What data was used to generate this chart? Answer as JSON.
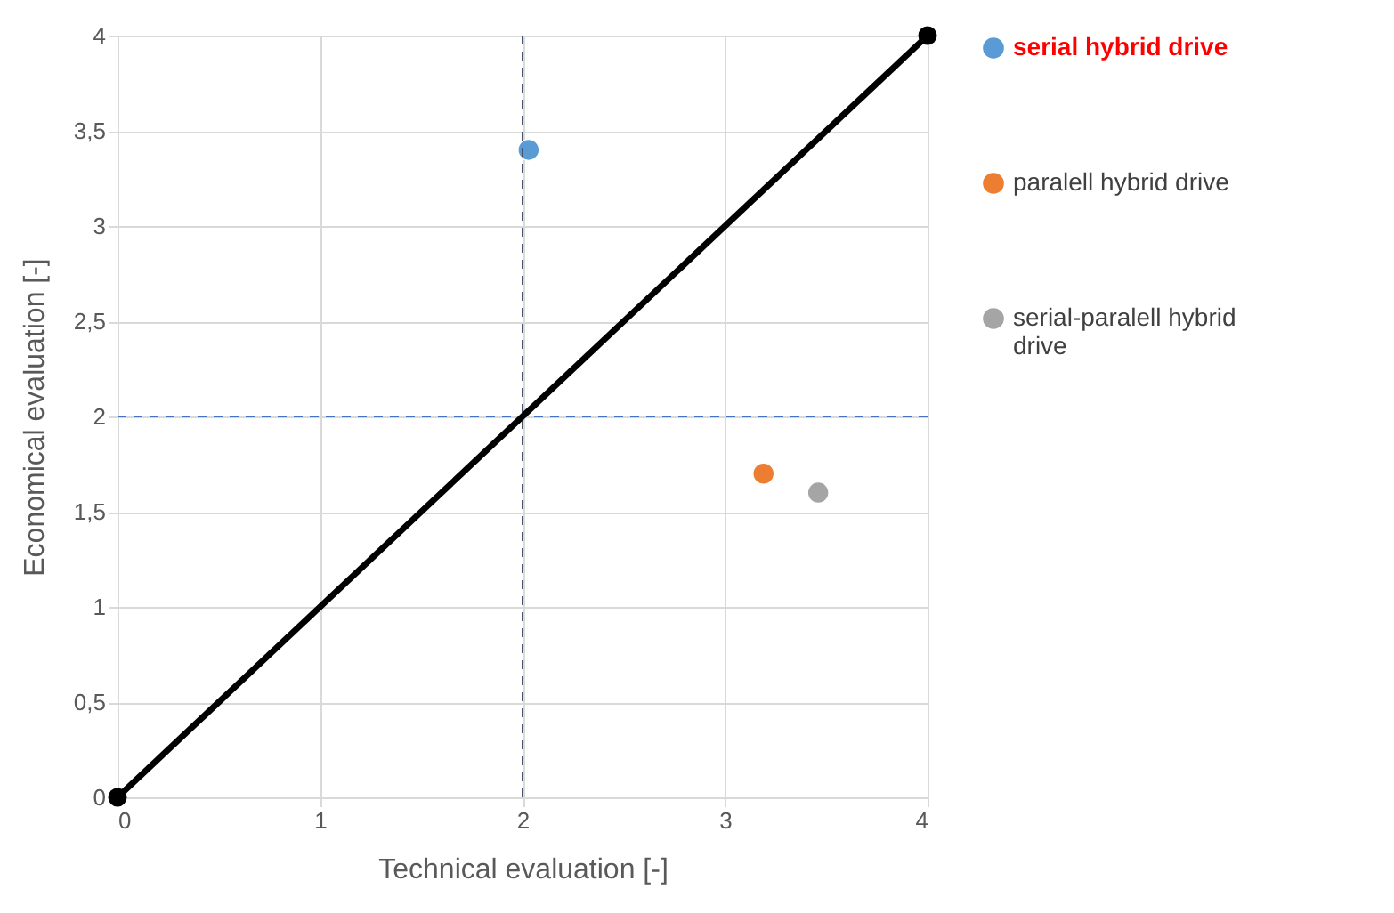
{
  "chart_data": {
    "type": "scatter",
    "xlabel": "Technical evaluation [-]",
    "ylabel": "Economical evaluation [-]",
    "xlim": [
      0,
      4
    ],
    "ylim": [
      0,
      4
    ],
    "xticks": [
      0,
      1,
      2,
      3,
      4
    ],
    "yticks": [
      0,
      {
        "value": 0.5,
        "label": "0,5"
      },
      1,
      {
        "value": 1.5,
        "label": "1,5"
      },
      2,
      {
        "value": 2.5,
        "label": "2,5"
      },
      3,
      {
        "value": 3.5,
        "label": "3,5"
      },
      4
    ],
    "grid": true,
    "legend": "right",
    "marker": "circle",
    "series": [
      {
        "name": "serial hybrid drive",
        "color": "#5b9bd5",
        "x": [
          2.03
        ],
        "values": [
          3.4
        ]
      },
      {
        "name": "paralell hybrid drive",
        "color": "#ed7d31",
        "x": [
          3.19
        ],
        "values": [
          1.7
        ]
      },
      {
        "name": "serial-paralell hybrid drive",
        "color": "#a5a5a5",
        "x": [
          3.46
        ],
        "values": [
          1.6
        ]
      },
      {
        "type": "line",
        "color": "#000000",
        "x": [
          0,
          4
        ],
        "values": [
          0,
          4
        ],
        "marker": "circle",
        "line_style": "solid"
      }
    ],
    "ref_lines": [
      {
        "axis": "x",
        "value": 2,
        "color": "#44546a",
        "line_style": "dashed"
      },
      {
        "axis": "y",
        "value": 2,
        "color": "#4472c4",
        "line_style": "dashed"
      }
    ]
  }
}
